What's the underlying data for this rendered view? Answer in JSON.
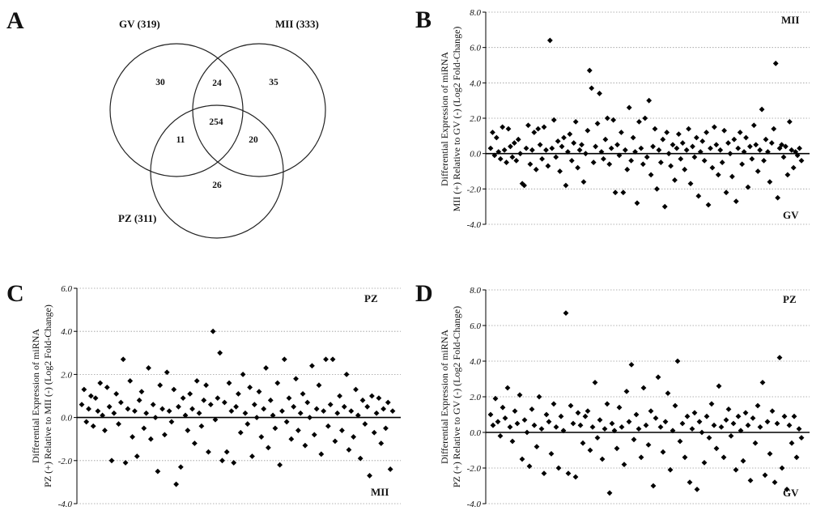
{
  "chart_data": [
    {
      "id": "A",
      "type": "venn",
      "panel_label": "A",
      "sets": [
        {
          "name": "GV (319)"
        },
        {
          "name": "MII (333)"
        },
        {
          "name": "PZ (311)"
        }
      ],
      "regions": {
        "gv_only": "30",
        "mii_only": "35",
        "pz_only": "26",
        "gv_mii": "24",
        "gv_pz": "11",
        "mii_pz": "20",
        "all": "254"
      }
    },
    {
      "id": "B",
      "type": "scatter",
      "panel_label": "B",
      "ylabel_line1": "Differential Expression of miRNA",
      "ylabel_line2": "MII (+) Relative to GV (-) (Log2 Fold-Change)",
      "top_label": "MII",
      "bottom_label": "GV",
      "ylim": [
        -4,
        8
      ],
      "yticks": [
        "8.0",
        "6.0",
        "4.0",
        "2.0",
        "0.0",
        "-2.0",
        "-4.0"
      ],
      "y": [
        0.3,
        1.2,
        -0.1,
        0.9,
        0.1,
        -0.3,
        1.5,
        0.2,
        -0.5,
        1.4,
        0.4,
        -0.2,
        0.6,
        -0.4,
        0.8,
        0.0,
        -1.7,
        -1.8,
        0.3,
        1.6,
        -0.6,
        0.2,
        1.2,
        -0.9,
        1.4,
        0.5,
        -0.3,
        1.5,
        0.2,
        -0.7,
        6.4,
        0.3,
        1.9,
        -0.2,
        0.7,
        -1.0,
        0.4,
        0.9,
        -1.8,
        0.1,
        1.1,
        -0.4,
        0.6,
        1.8,
        -0.8,
        0.2,
        0.5,
        -1.6,
        0.0,
        1.3,
        4.7,
        3.7,
        -0.5,
        0.4,
        1.7,
        3.4,
        0.1,
        -0.3,
        0.8,
        2.0,
        -0.6,
        0.3,
        1.9,
        -2.2,
        0.5,
        -0.1,
        1.2,
        -2.2,
        0.2,
        -0.9,
        2.6,
        -0.4,
        0.9,
        0.1,
        -2.8,
        1.8,
        0.3,
        -0.6,
        2.0,
        -0.2,
        3.0,
        -1.2,
        0.4,
        1.4,
        -2.0,
        0.2,
        -0.5,
        0.8,
        -3.0,
        1.2,
        0.0,
        -0.7,
        0.5,
        -1.5,
        0.3,
        1.1,
        -0.3,
        0.6,
        -0.9,
        0.2,
        1.4,
        -1.7,
        0.4,
        -0.2,
        0.9,
        -2.4,
        0.1,
        0.7,
        -0.4,
        1.2,
        -2.9,
        0.3,
        -0.8,
        1.5,
        0.5,
        -1.2,
        0.2,
        -0.5,
        1.3,
        -2.2,
        0.6,
        0.0,
        -1.3,
        0.8,
        -2.7,
        0.3,
        1.2,
        -0.6,
        0.1,
        0.9,
        -1.9,
        0.4,
        -0.3,
        1.6,
        0.5,
        -1.0,
        0.2,
        2.5,
        -0.4,
        0.8,
        0.1,
        -1.6,
        0.6,
        1.4,
        5.1,
        -2.5,
        0.3,
        0.5,
        -0.2,
        0.4,
        -1.2,
        1.8,
        0.2,
        -0.8,
        0.1,
        -0.1,
        0.3,
        -0.4
      ]
    },
    {
      "id": "C",
      "type": "scatter",
      "panel_label": "C",
      "ylabel_line1": "Differential Expression of miRNA",
      "ylabel_line2": "PZ (+) Relative to MII (-) (Log2 Fold-Change)",
      "top_label": "PZ",
      "bottom_label": "MII",
      "ylim": [
        -4,
        6
      ],
      "yticks": [
        "6.0",
        "4.0",
        "2.0",
        "0.0",
        "-2.0",
        "-4.0"
      ],
      "y": [
        0.6,
        1.3,
        -0.2,
        0.4,
        1.0,
        -0.4,
        0.9,
        0.3,
        1.6,
        0.1,
        -0.6,
        1.4,
        0.5,
        -2.0,
        0.2,
        1.1,
        -0.3,
        0.7,
        2.7,
        -2.1,
        0.4,
        1.7,
        -0.9,
        0.3,
        -1.8,
        0.8,
        1.2,
        -0.5,
        0.2,
        2.3,
        -1.0,
        0.6,
        0.0,
        -2.5,
        1.5,
        0.4,
        -0.8,
        2.1,
        0.3,
        -0.2,
        1.3,
        -3.1,
        0.5,
        -2.3,
        0.9,
        0.1,
        -0.6,
        1.1,
        0.4,
        -1.2,
        1.7,
        0.2,
        -0.4,
        0.8,
        1.5,
        -1.6,
        0.6,
        4.0,
        -0.1,
        0.9,
        3.0,
        -2.0,
        0.7,
        -1.6,
        1.6,
        0.3,
        -2.1,
        0.5,
        1.1,
        -0.7,
        2.0,
        0.2,
        -0.3,
        1.4,
        -1.8,
        0.6,
        0.0,
        1.2,
        -0.9,
        0.4,
        2.3,
        -1.4,
        0.8,
        0.1,
        -0.5,
        1.6,
        -2.2,
        0.3,
        2.7,
        -0.2,
        0.9,
        -1.0,
        0.5,
        1.8,
        -0.6,
        0.2,
        1.1,
        -1.3,
        0.7,
        0.0,
        2.4,
        -0.8,
        0.4,
        1.5,
        -1.7,
        0.3,
        2.7,
        -0.4,
        0.6,
        2.7,
        -1.1,
        0.2,
        1.0,
        -0.6,
        0.5,
        2.0,
        -1.5,
        0.3,
        -0.9,
        1.3,
        0.1,
        -1.9,
        0.8,
        -0.3,
        0.5,
        -2.7,
        1.0,
        -0.7,
        0.2,
        0.9,
        -1.2,
        0.4,
        -0.5,
        0.7,
        -2.4,
        0.3
      ]
    },
    {
      "id": "D",
      "type": "scatter",
      "panel_label": "D",
      "ylabel_line1": "Differential Expression of miRNA",
      "ylabel_line2": "PZ (+) Relative to GV (-) (Log2 Fold-Change)",
      "top_label": "PZ",
      "bottom_label": "GV",
      "ylim": [
        -4,
        8
      ],
      "yticks": [
        "8.0",
        "6.0",
        "4.0",
        "2.0",
        "0.0",
        "-2.0",
        "-4.0"
      ],
      "y": [
        1.0,
        0.4,
        1.9,
        0.6,
        -0.2,
        1.4,
        0.8,
        2.5,
        0.3,
        -0.5,
        1.2,
        0.5,
        2.1,
        -1.5,
        0.7,
        0.0,
        -1.9,
        1.3,
        0.4,
        -0.8,
        2.0,
        0.2,
        -2.3,
        1.0,
        0.6,
        -1.2,
        1.6,
        0.3,
        -2.0,
        0.9,
        0.1,
        6.7,
        -2.3,
        1.5,
        0.5,
        -2.5,
        1.1,
        0.4,
        -0.6,
        0.9,
        1.2,
        -1.0,
        0.3,
        2.8,
        -0.3,
        0.7,
        -1.5,
        0.2,
        1.6,
        -3.4,
        0.5,
        0.1,
        -0.9,
        1.4,
        0.3,
        -1.8,
        2.3,
        0.6,
        3.8,
        -0.4,
        1.0,
        0.2,
        -1.4,
        2.5,
        0.4,
        -0.7,
        1.2,
        -3.0,
        0.8,
        3.1,
        0.3,
        -1.1,
        0.6,
        2.2,
        -2.1,
        0.1,
        1.5,
        4.0,
        -0.5,
        0.5,
        -1.4,
        0.9,
        -2.8,
        0.2,
        1.1,
        -3.2,
        0.6,
        0.0,
        -1.7,
        0.9,
        -0.3,
        1.6,
        0.4,
        -0.9,
        2.6,
        0.3,
        -1.4,
        0.7,
        1.3,
        -0.2,
        0.5,
        -2.1,
        0.9,
        0.1,
        -1.6,
        1.1,
        0.4,
        -2.7,
        0.8,
        -0.6,
        1.5,
        0.3,
        2.8,
        -2.4,
        0.6,
        -1.2,
        1.2,
        -2.8,
        0.5,
        4.2,
        -2.0,
        0.9,
        -3.2,
        0.4,
        -0.6,
        0.9,
        -1.4,
        0.2,
        -0.3
      ]
    }
  ]
}
